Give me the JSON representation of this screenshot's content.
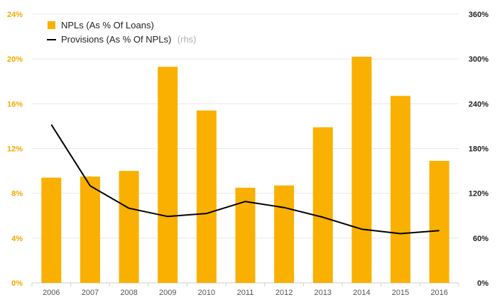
{
  "chart_data": {
    "type": "bar",
    "categories": [
      "2006",
      "2007",
      "2008",
      "2009",
      "2010",
      "2011",
      "2012",
      "2013",
      "2014",
      "2015",
      "2016"
    ],
    "series": [
      {
        "name": "NPLs (As % Of Loans)",
        "type": "bar",
        "axis": "left",
        "color": "#f9b000",
        "values": [
          9.4,
          9.5,
          10.0,
          19.3,
          15.4,
          8.5,
          8.7,
          13.9,
          20.2,
          16.7,
          10.9
        ]
      },
      {
        "name": "Provisions (As % Of NPLs)",
        "name_suffix": "(rhs)",
        "type": "line",
        "axis": "right",
        "color": "#000000",
        "values": [
          212,
          130,
          100,
          89,
          93,
          109,
          101,
          88,
          72,
          66,
          70
        ]
      }
    ],
    "y_left": {
      "ylim": [
        0,
        24
      ],
      "ticks": [
        "0%",
        "4%",
        "8%",
        "12%",
        "16%",
        "20%",
        "24%"
      ],
      "color": "#f5a800"
    },
    "y_right": {
      "ylim": [
        0,
        360
      ],
      "ticks": [
        "0%",
        "60%",
        "120%",
        "180%",
        "240%",
        "300%",
        "360%"
      ],
      "color": "#222222"
    },
    "xlabel": "",
    "grid": true,
    "legend": "top-left"
  }
}
